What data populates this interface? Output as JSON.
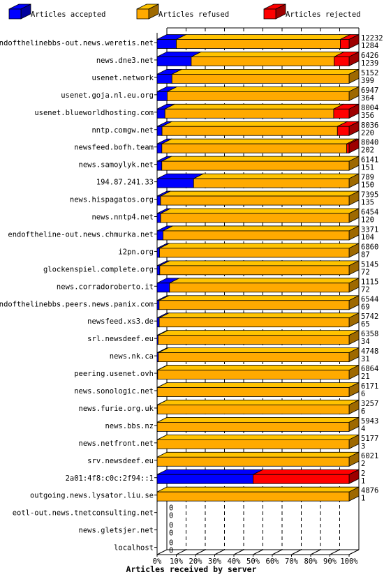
{
  "chart_data": {
    "type": "bar",
    "orientation": "horizontal",
    "stacking": "stacked-percent-3d",
    "title": "",
    "xlabel": "Articles received by server",
    "ylabel": "",
    "xlim": [
      0,
      100
    ],
    "x_ticks": [
      "0%",
      "10%",
      "20%",
      "30%",
      "40%",
      "50%",
      "60%",
      "70%",
      "80%",
      "90%",
      "100%"
    ],
    "grid": "vertical dashed lines at every 10%",
    "legend_position": "top",
    "legend": [
      {
        "name": "Articles accepted",
        "color": "#0000ff"
      },
      {
        "name": "Articles refused",
        "color": "#ffaa00"
      },
      {
        "name": "Articles rejected",
        "color": "#ff0000"
      }
    ],
    "rows": [
      {
        "server": "endofthelinebbs-out.news.weretis.net",
        "accepted": 1284,
        "refused": 10948,
        "rejected": 584,
        "total_label": "12232",
        "accepted_label": "1284"
      },
      {
        "server": "news.dne3.net",
        "accepted": 1239,
        "refused": 5187,
        "rejected": 540,
        "total_label": "6426",
        "accepted_label": "1239"
      },
      {
        "server": "usenet.network",
        "accepted": 399,
        "refused": 4753,
        "rejected": 0,
        "total_label": "5152",
        "accepted_label": "399"
      },
      {
        "server": "usenet.goja.nl.eu.org",
        "accepted": 364,
        "refused": 6583,
        "rejected": 0,
        "total_label": "6947",
        "accepted_label": "364"
      },
      {
        "server": "usenet.blueworldhosting.com",
        "accepted": 356,
        "refused": 7648,
        "rejected": 700,
        "total_label": "8004",
        "accepted_label": "356"
      },
      {
        "server": "nntp.comgw.net",
        "accepted": 220,
        "refused": 7816,
        "rejected": 520,
        "total_label": "8036",
        "accepted_label": "220"
      },
      {
        "server": "newsfeed.bofh.team",
        "accepted": 202,
        "refused": 7838,
        "rejected": 100,
        "total_label": "8040",
        "accepted_label": "202"
      },
      {
        "server": "news.samoylyk.net",
        "accepted": 151,
        "refused": 5990,
        "rejected": 0,
        "total_label": "6141",
        "accepted_label": "151"
      },
      {
        "server": "194.87.241.33",
        "accepted": 150,
        "refused": 639,
        "rejected": 0,
        "total_label": "789",
        "accepted_label": "150"
      },
      {
        "server": "news.hispagatos.org",
        "accepted": 135,
        "refused": 7260,
        "rejected": 0,
        "total_label": "7395",
        "accepted_label": "135"
      },
      {
        "server": "news.nntp4.net",
        "accepted": 120,
        "refused": 6334,
        "rejected": 0,
        "total_label": "6454",
        "accepted_label": "120"
      },
      {
        "server": "endoftheline-out.news.chmurka.net",
        "accepted": 104,
        "refused": 3267,
        "rejected": 0,
        "total_label": "3371",
        "accepted_label": "104"
      },
      {
        "server": "i2pn.org",
        "accepted": 87,
        "refused": 6773,
        "rejected": 0,
        "total_label": "6860",
        "accepted_label": "87"
      },
      {
        "server": "glockenspiel.complete.org",
        "accepted": 72,
        "refused": 5073,
        "rejected": 0,
        "total_label": "5145",
        "accepted_label": "72"
      },
      {
        "server": "news.corradoroberto.it",
        "accepted": 72,
        "refused": 1043,
        "rejected": 0,
        "total_label": "1115",
        "accepted_label": "72"
      },
      {
        "server": "endofthelinebbs.peers.news.panix.com",
        "accepted": 69,
        "refused": 6475,
        "rejected": 0,
        "total_label": "6544",
        "accepted_label": "69"
      },
      {
        "server": "newsfeed.xs3.de",
        "accepted": 65,
        "refused": 5677,
        "rejected": 0,
        "total_label": "5742",
        "accepted_label": "65"
      },
      {
        "server": "srl.newsdeef.eu",
        "accepted": 34,
        "refused": 6324,
        "rejected": 0,
        "total_label": "6358",
        "accepted_label": "34"
      },
      {
        "server": "news.nk.ca",
        "accepted": 31,
        "refused": 4717,
        "rejected": 0,
        "total_label": "4748",
        "accepted_label": "31"
      },
      {
        "server": "peering.usenet.ovh",
        "accepted": 21,
        "refused": 6843,
        "rejected": 0,
        "total_label": "6864",
        "accepted_label": "21"
      },
      {
        "server": "news.sonologic.net",
        "accepted": 6,
        "refused": 6165,
        "rejected": 0,
        "total_label": "6171",
        "accepted_label": "6"
      },
      {
        "server": "news.furie.org.uk",
        "accepted": 6,
        "refused": 3251,
        "rejected": 0,
        "total_label": "3257",
        "accepted_label": "6"
      },
      {
        "server": "news.bbs.nz",
        "accepted": 4,
        "refused": 5939,
        "rejected": 0,
        "total_label": "5943",
        "accepted_label": "4"
      },
      {
        "server": "news.netfront.net",
        "accepted": 3,
        "refused": 5174,
        "rejected": 0,
        "total_label": "5177",
        "accepted_label": "3"
      },
      {
        "server": "srv.newsdeef.eu",
        "accepted": 2,
        "refused": 6019,
        "rejected": 0,
        "total_label": "6021",
        "accepted_label": "2"
      },
      {
        "server": "2a01:4f8:c0c:2f94::1",
        "accepted": 1,
        "refused": 0,
        "rejected": 1,
        "total_label": "2",
        "accepted_label": "1"
      },
      {
        "server": "outgoing.news.lysator.liu.se",
        "accepted": 1,
        "refused": 4875,
        "rejected": 0,
        "total_label": "4876",
        "accepted_label": "1"
      },
      {
        "server": "eotl-out.news.tnetconsulting.net",
        "accepted": 0,
        "refused": 0,
        "rejected": 0,
        "total_label": "0",
        "accepted_label": "0"
      },
      {
        "server": "news.gletsjer.net",
        "accepted": 0,
        "refused": 0,
        "rejected": 0,
        "total_label": "0",
        "accepted_label": "0"
      },
      {
        "server": "localhost",
        "accepted": 0,
        "refused": 0,
        "rejected": 0,
        "total_label": "0",
        "accepted_label": "0"
      }
    ]
  }
}
